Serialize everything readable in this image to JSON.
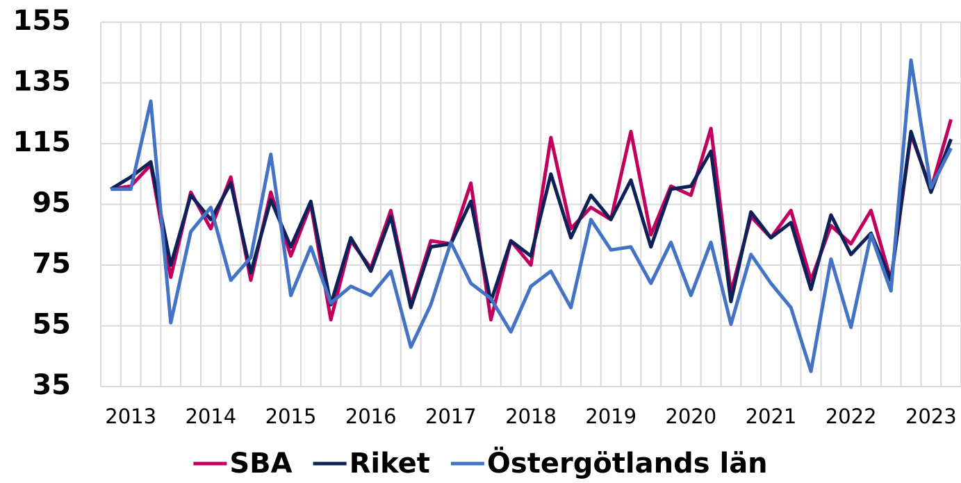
{
  "chart_data": {
    "type": "line",
    "categories": [
      null,
      "2013",
      null,
      null,
      null,
      "2014",
      null,
      null,
      null,
      "2015",
      null,
      null,
      null,
      "2016",
      null,
      null,
      null,
      "2017",
      null,
      null,
      null,
      "2018",
      null,
      null,
      null,
      "2019",
      null,
      null,
      null,
      "2020",
      null,
      null,
      null,
      "2021",
      null,
      null,
      null,
      "2022",
      null,
      null,
      null,
      "2023",
      null
    ],
    "series": [
      {
        "name": "SBA",
        "color": "#c1005d",
        "values": [
          100,
          101,
          108,
          71,
          99,
          87,
          104,
          70,
          99,
          78,
          95,
          57,
          83,
          74,
          93,
          62,
          83,
          82,
          102,
          57,
          83,
          75,
          117,
          87,
          94,
          90,
          119,
          85,
          101,
          98,
          120,
          66,
          91,
          84,
          93,
          70,
          88,
          82,
          93,
          70,
          118,
          100,
          123
        ]
      },
      {
        "name": "Riket",
        "color": "#0d2158",
        "values": [
          100,
          104,
          109,
          75,
          98,
          90,
          102,
          72.5,
          96.5,
          81,
          96,
          62,
          84,
          73,
          91,
          61,
          81,
          82,
          96,
          63,
          83,
          78,
          105,
          84,
          98,
          90,
          103,
          81,
          100,
          101,
          112.5,
          63,
          92.5,
          84,
          89,
          67,
          91.5,
          78.5,
          85.5,
          70,
          119,
          99,
          116.5
        ]
      },
      {
        "name": "Östergötlands län",
        "color": "#4472c4",
        "values": [
          100,
          100,
          129,
          56,
          86,
          94,
          70,
          77.5,
          111.5,
          65,
          81,
          62.5,
          68,
          65,
          73,
          48,
          62,
          82.5,
          69,
          64,
          53,
          68,
          73,
          61,
          90,
          80,
          81,
          69,
          82.5,
          65,
          82.5,
          55.5,
          78.5,
          69,
          61,
          40,
          77,
          54.5,
          85,
          66.5,
          142.5,
          100.5,
          113.5
        ]
      }
    ],
    "ylim": [
      35,
      155
    ],
    "yticks": [
      35,
      55,
      75,
      95,
      115,
      135,
      155
    ],
    "grid": true,
    "legend": "bottom"
  }
}
